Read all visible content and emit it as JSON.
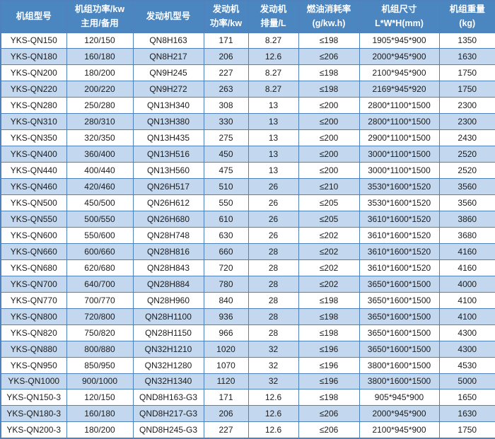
{
  "colors": {
    "header_bg": "#4c86c1",
    "header_divider": "#7faad8",
    "header_text": "#ffffff",
    "border": "#4f81bd",
    "alt_row_bg": "#c3d7ee",
    "body_text": "#1c1c1c"
  },
  "chart_data": {
    "type": "table",
    "title": "",
    "columns": [
      {
        "name": "unit-model",
        "lines": [
          "机组型号"
        ]
      },
      {
        "name": "unit-power",
        "lines": [
          "机组功率/kw",
          "主用/备用"
        ]
      },
      {
        "name": "engine-model",
        "lines": [
          "发动机型号"
        ]
      },
      {
        "name": "engine-power",
        "lines": [
          "发动机",
          "功率/kw"
        ]
      },
      {
        "name": "engine-displacement",
        "lines": [
          "发动机",
          "排量/L"
        ]
      },
      {
        "name": "fuel-consumption",
        "lines": [
          "燃油消耗率",
          "(g/kw.h)"
        ]
      },
      {
        "name": "unit-dimensions",
        "lines": [
          "机组尺寸",
          "L*W*H(mm)"
        ]
      },
      {
        "name": "unit-weight",
        "lines": [
          "机组重量",
          "(kg)"
        ]
      }
    ],
    "rows": [
      [
        "YKS-QN150",
        "120/150",
        "QN8H163",
        "171",
        "8.27",
        "≤198",
        "1905*945*900",
        "1350"
      ],
      [
        "YKS-QN180",
        "160/180",
        "QN8H217",
        "206",
        "12.6",
        "≤206",
        "2000*945*900",
        "1630"
      ],
      [
        "YKS-QN200",
        "180/200",
        "QN9H245",
        "227",
        "8.27",
        "≤198",
        "2100*945*900",
        "1750"
      ],
      [
        "YKS-QN220",
        "200/220",
        "QN9H272",
        "263",
        "8.27",
        "≤198",
        "2169*945*920",
        "1750"
      ],
      [
        "YKS-QN280",
        "250/280",
        "QN13H340",
        "308",
        "13",
        "≤200",
        "2800*1100*1500",
        "2300"
      ],
      [
        "YKS-QN310",
        "280/310",
        "QN13H380",
        "330",
        "13",
        "≤200",
        "2800*1100*1500",
        "2300"
      ],
      [
        "YKS-QN350",
        "320/350",
        "QN13H435",
        "275",
        "13",
        "≤200",
        "2900*1100*1500",
        "2430"
      ],
      [
        "YKS-QN400",
        "360/400",
        "QN13H516",
        "450",
        "13",
        "≤200",
        "3000*1100*1500",
        "2520"
      ],
      [
        "YKS-QN440",
        "400/440",
        "QN13H560",
        "475",
        "13",
        "≤200",
        "3000*1100*1500",
        "2520"
      ],
      [
        "YKS-QN460",
        "420/460",
        "QN26H517",
        "510",
        "26",
        "≤210",
        "3530*1600*1520",
        "3560"
      ],
      [
        "YKS-QN500",
        "450/500",
        "QN26H612",
        "550",
        "26",
        "≤205",
        "3530*1600*1520",
        "3560"
      ],
      [
        "YKS-QN550",
        "500/550",
        "QN26H680",
        "610",
        "26",
        "≤205",
        "3610*1600*1520",
        "3860"
      ],
      [
        "YKS-QN600",
        "550/600",
        "QN28H748",
        "630",
        "26",
        "≤202",
        "3610*1600*1520",
        "3680"
      ],
      [
        "YKS-QN660",
        "600/660",
        "QN28H816",
        "660",
        "28",
        "≤202",
        "3610*1600*1520",
        "4160"
      ],
      [
        "YKS-QN680",
        "620/680",
        "QN28H843",
        "720",
        "28",
        "≤202",
        "3610*1600*1520",
        "4160"
      ],
      [
        "YKS-QN700",
        "640/700",
        "QN28H884",
        "780",
        "28",
        "≤202",
        "3650*1600*1500",
        "4000"
      ],
      [
        "YKS-QN770",
        "700/770",
        "QN28H960",
        "840",
        "28",
        "≤198",
        "3650*1600*1500",
        "4100"
      ],
      [
        "YKS-QN800",
        "720/800",
        "QN28H1100",
        "936",
        "28",
        "≤198",
        "3650*1600*1500",
        "4100"
      ],
      [
        "YKS-QN820",
        "750/820",
        "QN28H1150",
        "966",
        "28",
        "≤198",
        "3650*1600*1500",
        "4300"
      ],
      [
        "YKS-QN880",
        "800/880",
        "QN32H1210",
        "1020",
        "32",
        "≤196",
        "3650*1600*1500",
        "4300"
      ],
      [
        "YKS-QN950",
        "850/950",
        "QN32H1280",
        "1070",
        "32",
        "≤196",
        "3800*1600*1500",
        "4530"
      ],
      [
        "YKS-QN1000",
        "900/1000",
        "QN32H1340",
        "1120",
        "32",
        "≤196",
        "3800*1600*1500",
        "5000"
      ],
      [
        "YKS-QN150-3",
        "120/150",
        "QND8H163-G3",
        "171",
        "12.6",
        "≤198",
        "905*945*900",
        "1650"
      ],
      [
        "YKS-QN180-3",
        "160/180",
        "QND8H217-G3",
        "206",
        "12.6",
        "≤206",
        "2000*945*900",
        "1630"
      ],
      [
        "YKS-QN200-3",
        "180/200",
        "QND8H245-G3",
        "227",
        "12.6",
        "≤206",
        "2100*945*900",
        "1750"
      ]
    ]
  }
}
